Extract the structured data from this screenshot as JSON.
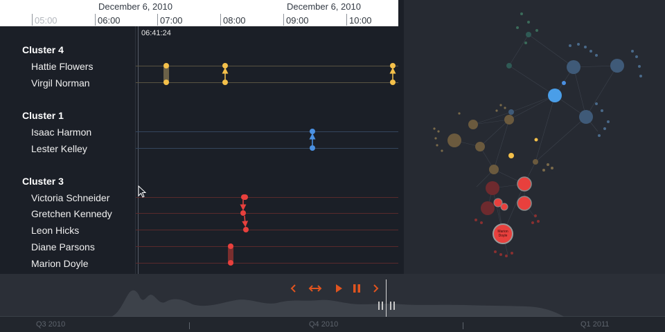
{
  "timeline": {
    "header": {
      "dates": [
        {
          "text": "December 6, 2010"
        },
        {
          "text": "December 6, 2010"
        }
      ],
      "hours": [
        "05:00",
        "06:00",
        "07:00",
        "08:00",
        "09:00",
        "10:00"
      ]
    },
    "cursor_time": "06:41:24",
    "clusters": [
      {
        "name": "Cluster 4",
        "color": "#f4c04a",
        "people": [
          "Hattie Flowers",
          "Virgil Norman"
        ]
      },
      {
        "name": "Cluster 1",
        "color": "#4a90e2",
        "people": [
          "Isaac Harmon",
          "Lester Kelley"
        ]
      },
      {
        "name": "Cluster 3",
        "color": "#e8403d",
        "people": [
          "Victoria Schneider",
          "Gretchen Kennedy",
          "Leon Hicks",
          "Diane Parsons",
          "Marion Doyle"
        ]
      }
    ]
  },
  "graph": {
    "highlighted_node_label": "Marion\nDoyle",
    "colors": {
      "blue": "#4a90e2",
      "yellow": "#f4c04a",
      "red": "#e8403d",
      "olive": "#6b5a3e",
      "teal": "#2f5a55"
    }
  },
  "bottom": {
    "quarters": [
      "Q3 2010",
      "Q4 2010",
      "Q1 2011"
    ],
    "controls": [
      {
        "name": "previous-button",
        "icon": "chevron-left-icon"
      },
      {
        "name": "fit-range-button",
        "icon": "arrows-horizontal-icon"
      },
      {
        "name": "play-button",
        "icon": "play-icon"
      },
      {
        "name": "pause-button",
        "icon": "pause-icon"
      },
      {
        "name": "next-button",
        "icon": "chevron-right-icon"
      }
    ],
    "accent_color": "#e0541f"
  }
}
